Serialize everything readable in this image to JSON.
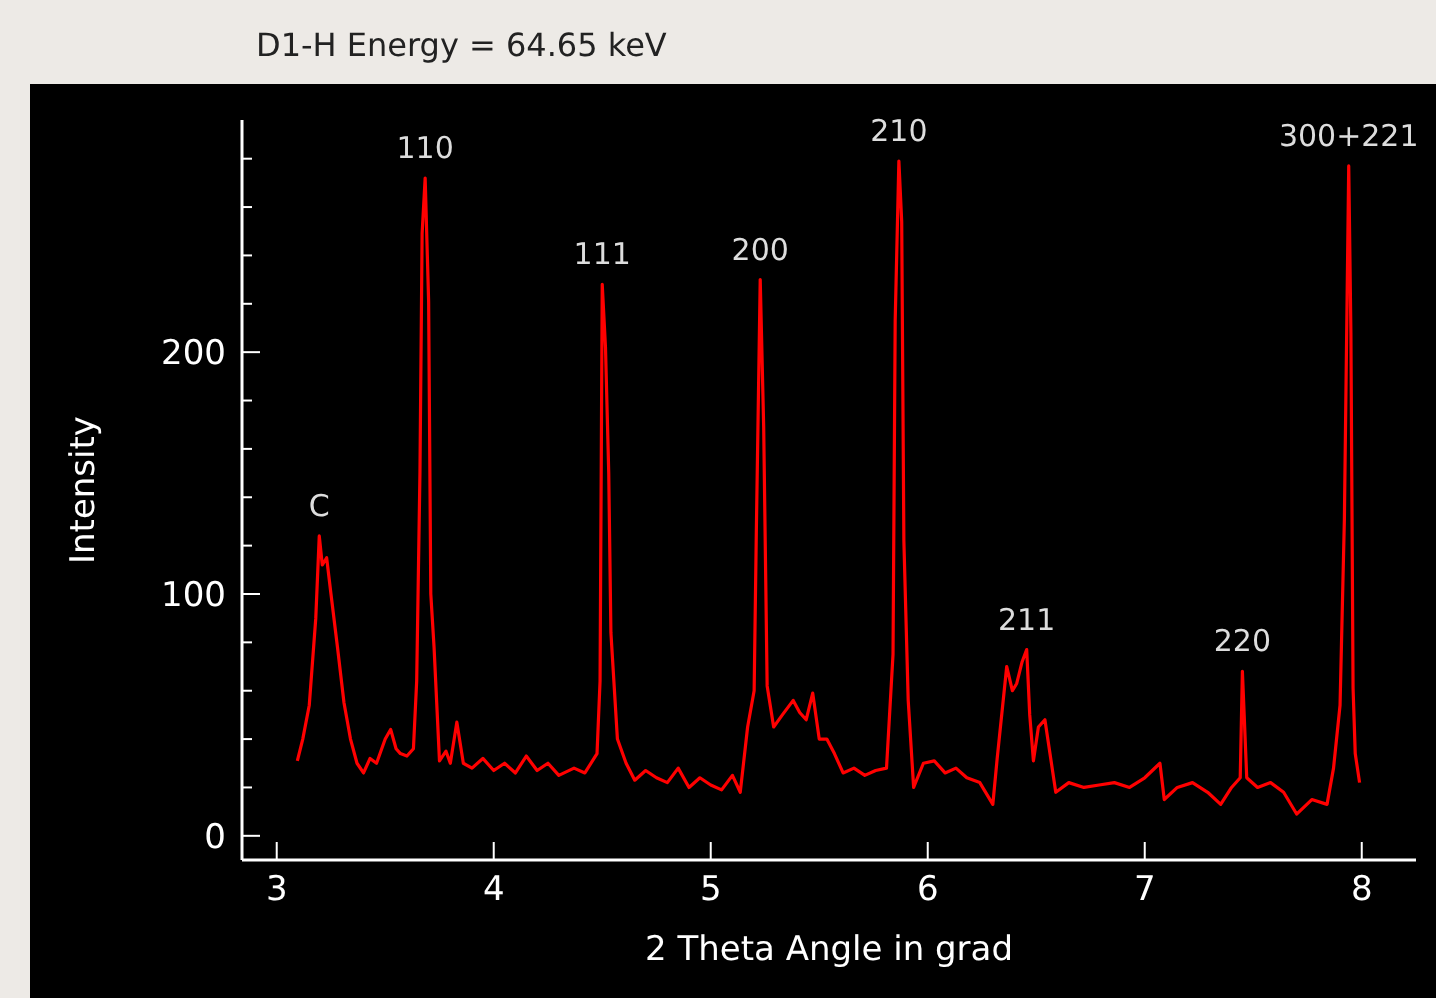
{
  "chart_data": {
    "type": "line",
    "title": "D1-H Energy = 64.65 keV",
    "xlabel": "2 Theta Angle in grad",
    "ylabel": "Intensity",
    "x": [
      3.095,
      3.12,
      3.15,
      3.18,
      3.196,
      3.21,
      3.23,
      3.25,
      3.28,
      3.31,
      3.34,
      3.37,
      3.4,
      3.43,
      3.46,
      3.5,
      3.525,
      3.55,
      3.57,
      3.6,
      3.63,
      3.645,
      3.66,
      3.67,
      3.684,
      3.7,
      3.71,
      3.725,
      3.75,
      3.78,
      3.8,
      3.83,
      3.86,
      3.9,
      3.95,
      4.0,
      4.05,
      4.1,
      4.15,
      4.2,
      4.25,
      4.3,
      4.37,
      4.42,
      4.476,
      4.49,
      4.5,
      4.515,
      4.53,
      4.54,
      4.57,
      4.61,
      4.65,
      4.7,
      4.75,
      4.8,
      4.85,
      4.9,
      4.95,
      5.0,
      5.05,
      5.1,
      5.136,
      5.17,
      5.2,
      5.21,
      5.228,
      5.244,
      5.26,
      5.29,
      5.33,
      5.38,
      5.41,
      5.44,
      5.47,
      5.5,
      5.535,
      5.57,
      5.61,
      5.66,
      5.71,
      5.76,
      5.81,
      5.84,
      5.85,
      5.867,
      5.88,
      5.89,
      5.91,
      5.935,
      5.98,
      6.03,
      6.08,
      6.13,
      6.18,
      6.24,
      6.3,
      6.32,
      6.364,
      6.39,
      6.41,
      6.435,
      6.456,
      6.47,
      6.487,
      6.51,
      6.54,
      6.59,
      6.65,
      6.72,
      6.79,
      6.86,
      6.93,
      7.0,
      7.07,
      7.09,
      7.15,
      7.22,
      7.29,
      7.35,
      7.4,
      7.44,
      7.45,
      7.47,
      7.52,
      7.58,
      7.64,
      7.7,
      7.77,
      7.84,
      7.87,
      7.9,
      7.92,
      7.94,
      7.95,
      7.96,
      7.97,
      7.99
    ],
    "series": [
      {
        "color": "#ff0000",
        "values": [
          31,
          40,
          54,
          90,
          124,
          112,
          115,
          100,
          78,
          55,
          40,
          30,
          26,
          32,
          30,
          40,
          44,
          36,
          34,
          33,
          36,
          64,
          150,
          249,
          272,
          221,
          100,
          78,
          31,
          35,
          30,
          47,
          30,
          28,
          32,
          27,
          30,
          26,
          33,
          27,
          30,
          25,
          28,
          26,
          34,
          64,
          228,
          202,
          150,
          84,
          40,
          30,
          23,
          27,
          24,
          22,
          28,
          20,
          24,
          21,
          19,
          25,
          18,
          45,
          60,
          125,
          230,
          169,
          62,
          45,
          50,
          56,
          51,
          48,
          59,
          40,
          40,
          34,
          26,
          28,
          25,
          27,
          28,
          75,
          213,
          279,
          254,
          122,
          56,
          20,
          30,
          31,
          26,
          28,
          24,
          22,
          13,
          32,
          70,
          60,
          63,
          72,
          77,
          50,
          31,
          45,
          48,
          18,
          22,
          20,
          21,
          22,
          20,
          24,
          30,
          15,
          20,
          22,
          18,
          13,
          20,
          24,
          68,
          24,
          20,
          22,
          18,
          9,
          15,
          13,
          28,
          54,
          131,
          277,
          208,
          61,
          34,
          22
        ]
      }
    ],
    "xlim": [
      2.84,
      8.25
    ],
    "xticks": [
      3,
      4,
      5,
      6,
      7,
      8
    ],
    "ylim": [
      -10,
      296
    ],
    "yticks": [
      0,
      {
        "value": 20,
        "label": null
      },
      {
        "value": 40,
        "label": null
      },
      {
        "value": 60,
        "label": null
      },
      {
        "value": 80,
        "label": null
      },
      100,
      {
        "value": 120,
        "label": null
      },
      {
        "value": 140,
        "label": null
      },
      {
        "value": 160,
        "label": null
      },
      {
        "value": 180,
        "label": null
      },
      200,
      {
        "value": 220,
        "label": null
      },
      {
        "value": 240,
        "label": null
      },
      {
        "value": 260,
        "label": null
      },
      {
        "value": 280,
        "label": null
      }
    ],
    "grid": false,
    "marker": "none",
    "line_style": "solid",
    "annotations": [
      {
        "text": "C",
        "x": 3.196,
        "y": 124
      },
      {
        "text": "110",
        "x": 3.684,
        "y": 272
      },
      {
        "text": "111",
        "x": 4.5,
        "y": 228
      },
      {
        "text": "200",
        "x": 5.228,
        "y": 230
      },
      {
        "text": "210",
        "x": 5.867,
        "y": 279
      },
      {
        "text": "211",
        "x": 6.456,
        "y": 77
      },
      {
        "text": "220",
        "x": 7.45,
        "y": 68
      },
      {
        "text": "300+221",
        "x": 7.94,
        "y": 277
      }
    ]
  }
}
